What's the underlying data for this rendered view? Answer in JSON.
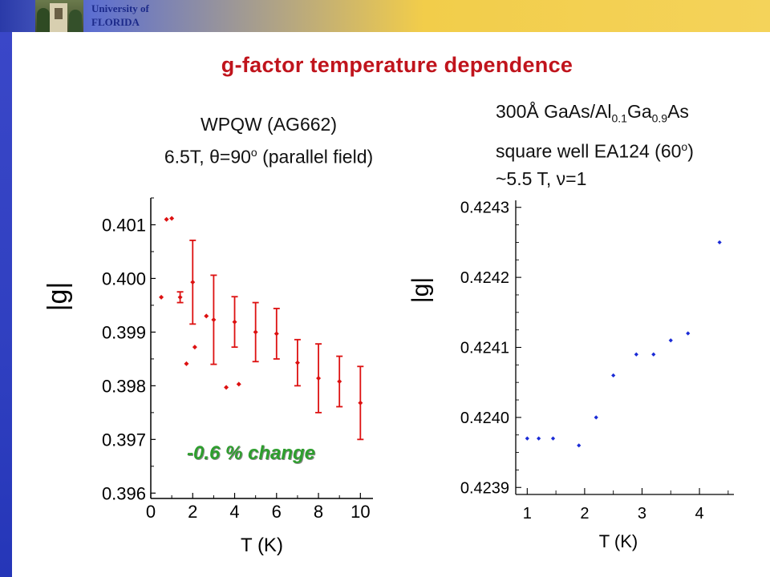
{
  "header": {
    "university_line1": "University of",
    "university_line2": "FLORIDA"
  },
  "slide": {
    "title": "g-factor temperature dependence"
  },
  "left_caption": {
    "line1": "WPQW (AG662)",
    "line2_pre": "6.5T, ",
    "line2_theta": "θ",
    "line2_mid": "=90",
    "line2_sup": "o",
    "line2_post": " (parallel field)"
  },
  "right_caption": {
    "l1_a": "300Å GaAs/Al",
    "l1_sub1": "0.1",
    "l1_b": "Ga",
    "l1_sub2": "0.9",
    "l1_c": "As",
    "l2_a": "square well EA124 (60",
    "l2_sup": "o",
    "l2_b": ")",
    "l3_a": "~5.5 T, ",
    "l3_nu": "ν",
    "l3_b": "=1"
  },
  "colors": {
    "title": "#c0141c",
    "left_series": "#dd1111",
    "right_series": "#1a2bd6",
    "annotation": "#2e9e2e"
  },
  "chart_data": [
    {
      "type": "scatter",
      "ylabel": "|g|",
      "xlabel": "T (K)",
      "xlim": [
        0,
        10.6
      ],
      "ylim": [
        0.3959,
        0.4015
      ],
      "xticks": [
        0,
        2,
        4,
        6,
        8,
        10
      ],
      "yticks": [
        0.396,
        0.397,
        0.398,
        0.399,
        0.4,
        0.401
      ],
      "ytick_labels": [
        "0.396",
        "0.397",
        "0.398",
        "0.399",
        "0.400",
        "0.401"
      ],
      "annotation": "-0.6 % change",
      "series": [
        {
          "points": [
            {
              "x": 0.5,
              "y": 0.39965
            },
            {
              "x": 0.75,
              "y": 0.4011
            },
            {
              "x": 1.0,
              "y": 0.40112
            },
            {
              "x": 1.4,
              "y": 0.39965,
              "err": 0.0001
            },
            {
              "x": 1.7,
              "y": 0.39841
            },
            {
              "x": 2.0,
              "y": 0.39993,
              "err": 0.00078
            },
            {
              "x": 2.1,
              "y": 0.39872
            },
            {
              "x": 2.65,
              "y": 0.3993
            },
            {
              "x": 3.0,
              "y": 0.39923,
              "err": 0.00083
            },
            {
              "x": 3.6,
              "y": 0.39797
            },
            {
              "x": 4.0,
              "y": 0.39919,
              "err": 0.00047
            },
            {
              "x": 4.2,
              "y": 0.39803
            },
            {
              "x": 5.0,
              "y": 0.399,
              "err": 0.00055
            },
            {
              "x": 6.0,
              "y": 0.39897,
              "err": 0.00047
            },
            {
              "x": 7.0,
              "y": 0.39843,
              "err": 0.00043
            },
            {
              "x": 8.0,
              "y": 0.39814,
              "err": 0.00064
            },
            {
              "x": 9.0,
              "y": 0.39808,
              "err": 0.00047
            },
            {
              "x": 10.0,
              "y": 0.39768,
              "err": 0.00068
            }
          ]
        }
      ]
    },
    {
      "type": "scatter",
      "ylabel": "|g|",
      "xlabel": "T (K)",
      "xlim": [
        0.8,
        4.6
      ],
      "ylim": [
        0.42389,
        0.42431
      ],
      "xticks": [
        1,
        2,
        3,
        4
      ],
      "yticks": [
        0.4239,
        0.424,
        0.4241,
        0.4242,
        0.4243
      ],
      "ytick_labels": [
        "0.4239",
        "0.4240",
        "0.4241",
        "0.4242",
        "0.4243"
      ],
      "series": [
        {
          "points": [
            {
              "x": 1.0,
              "y": 0.42397
            },
            {
              "x": 1.2,
              "y": 0.42397
            },
            {
              "x": 1.45,
              "y": 0.42397
            },
            {
              "x": 1.9,
              "y": 0.42396
            },
            {
              "x": 2.2,
              "y": 0.424
            },
            {
              "x": 2.5,
              "y": 0.42406
            },
            {
              "x": 2.9,
              "y": 0.42409
            },
            {
              "x": 3.2,
              "y": 0.42409
            },
            {
              "x": 3.5,
              "y": 0.42411
            },
            {
              "x": 3.8,
              "y": 0.42412
            },
            {
              "x": 4.35,
              "y": 0.42425
            }
          ]
        }
      ]
    }
  ]
}
